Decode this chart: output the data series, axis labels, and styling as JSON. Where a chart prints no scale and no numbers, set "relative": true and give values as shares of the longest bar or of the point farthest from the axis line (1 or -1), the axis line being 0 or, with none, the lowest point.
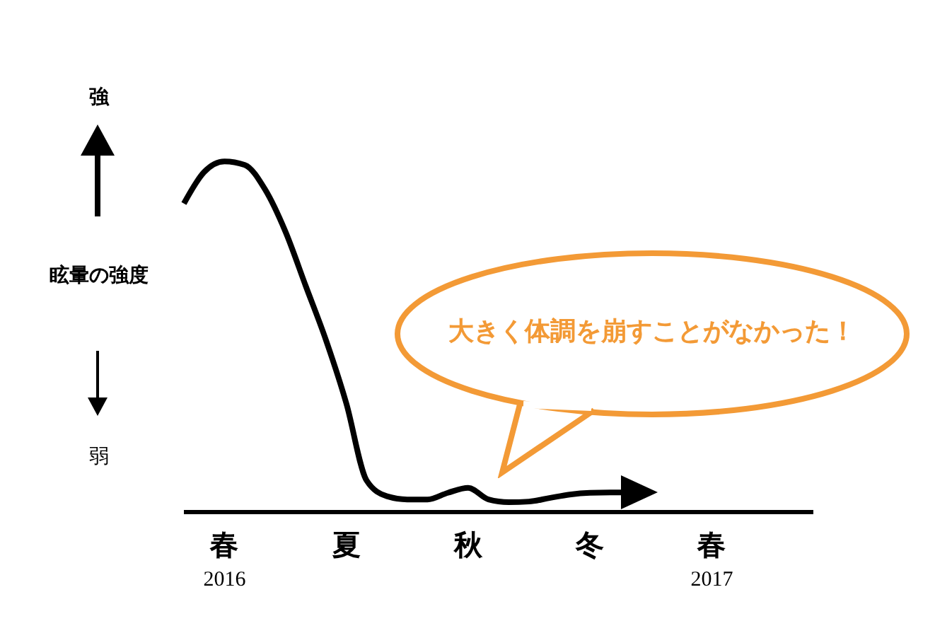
{
  "chart_data": {
    "type": "line",
    "relative": true,
    "ylabel": "眩暈の強度",
    "annotations": [
      "強",
      "弱",
      "大きく体調を崩すことがなかった！"
    ],
    "categories": [
      null,
      null,
      "春\n2016",
      null,
      null,
      null,
      null,
      null,
      "夏",
      null,
      null,
      null,
      null,
      null,
      "秋",
      null,
      null,
      null,
      null,
      null,
      "冬",
      null,
      null,
      null,
      null,
      null,
      "春\n2017",
      null,
      null,
      null,
      null,
      null
    ],
    "series": [
      {
        "color": "#000000",
        "values": [
          0.88,
          0.97,
          1,
          0.99,
          0.92,
          0.8,
          0.645,
          0.49,
          0.31,
          0.09,
          0.045,
          0.036,
          0.036,
          0.055,
          0.069,
          0.036,
          0.028,
          0.03,
          0.04,
          0.05,
          0.055,
          0.056,
          0.056,
          null,
          null,
          null,
          null,
          null,
          null,
          null,
          null,
          null
        ]
      }
    ],
    "grid": false,
    "legend": false
  }
}
